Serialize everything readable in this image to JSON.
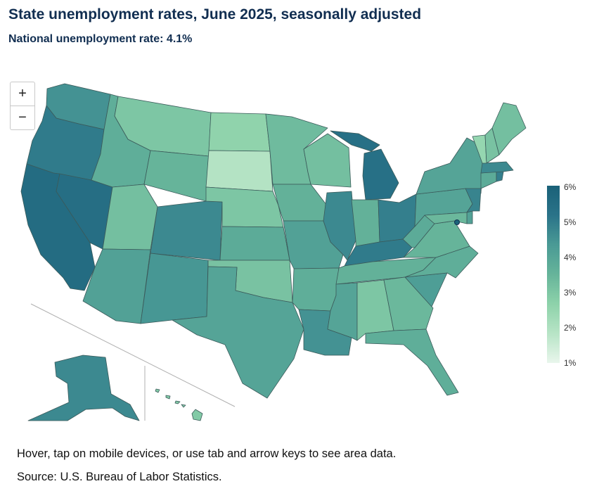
{
  "title": "State unemployment rates, June 2025, seasonally adjusted",
  "subtitle": "National unemployment rate: 4.1%",
  "zoom": {
    "in_label": "+",
    "out_label": "−"
  },
  "legend": {
    "ticks": [
      "6%",
      "5%",
      "4%",
      "3%",
      "2%",
      "1%"
    ],
    "min": 1,
    "max": 6,
    "colors": [
      "#e9f6ec",
      "#b7e4c6",
      "#8dd2aa",
      "#66b49a",
      "#4a9a95",
      "#2a7389",
      "#1a6178"
    ]
  },
  "instructions": "Hover, tap on mobile devices, or use tab and arrow keys to see area data.",
  "source": "Source: U.S. Bureau of Labor Statistics.",
  "states": [
    {
      "code": "WA",
      "rate": 4.5
    },
    {
      "code": "OR",
      "rate": 5.0
    },
    {
      "code": "CA",
      "rate": 5.5
    },
    {
      "code": "NV",
      "rate": 5.4
    },
    {
      "code": "ID",
      "rate": 3.7
    },
    {
      "code": "MT",
      "rate": 3.0
    },
    {
      "code": "WY",
      "rate": 3.5
    },
    {
      "code": "UT",
      "rate": 3.2
    },
    {
      "code": "AZ",
      "rate": 4.1
    },
    {
      "code": "CO",
      "rate": 4.7
    },
    {
      "code": "NM",
      "rate": 4.4
    },
    {
      "code": "ND",
      "rate": 2.6
    },
    {
      "code": "SD",
      "rate": 1.9
    },
    {
      "code": "NE",
      "rate": 3.0
    },
    {
      "code": "KS",
      "rate": 3.8
    },
    {
      "code": "OK",
      "rate": 3.1
    },
    {
      "code": "TX",
      "rate": 4.0
    },
    {
      "code": "MN",
      "rate": 3.3
    },
    {
      "code": "IA",
      "rate": 3.6
    },
    {
      "code": "MO",
      "rate": 4.1
    },
    {
      "code": "AR",
      "rate": 3.7
    },
    {
      "code": "LA",
      "rate": 4.5
    },
    {
      "code": "WI",
      "rate": 3.2
    },
    {
      "code": "IL",
      "rate": 4.7
    },
    {
      "code": "MI",
      "rate": 5.3
    },
    {
      "code": "IN",
      "rate": 3.6
    },
    {
      "code": "OH",
      "rate": 4.9
    },
    {
      "code": "KY",
      "rate": 5.0
    },
    {
      "code": "TN",
      "rate": 3.6
    },
    {
      "code": "MS",
      "rate": 4.0
    },
    {
      "code": "AL",
      "rate": 3.0
    },
    {
      "code": "GA",
      "rate": 3.4
    },
    {
      "code": "FL",
      "rate": 3.7
    },
    {
      "code": "SC",
      "rate": 4.2
    },
    {
      "code": "NC",
      "rate": 3.7
    },
    {
      "code": "VA",
      "rate": 3.5
    },
    {
      "code": "WV",
      "rate": 3.8
    },
    {
      "code": "PA",
      "rate": 4.0
    },
    {
      "code": "NY",
      "rate": 4.0
    },
    {
      "code": "NJ",
      "rate": 4.8
    },
    {
      "code": "DE",
      "rate": 4.1
    },
    {
      "code": "MD",
      "rate": 3.4
    },
    {
      "code": "DC",
      "rate": 5.9
    },
    {
      "code": "CT",
      "rate": 3.8
    },
    {
      "code": "RI",
      "rate": 4.9
    },
    {
      "code": "MA",
      "rate": 4.7
    },
    {
      "code": "VT",
      "rate": 2.5
    },
    {
      "code": "NH",
      "rate": 3.1
    },
    {
      "code": "ME",
      "rate": 3.2
    },
    {
      "code": "AK",
      "rate": 4.7
    },
    {
      "code": "HI",
      "rate": 2.9
    }
  ]
}
